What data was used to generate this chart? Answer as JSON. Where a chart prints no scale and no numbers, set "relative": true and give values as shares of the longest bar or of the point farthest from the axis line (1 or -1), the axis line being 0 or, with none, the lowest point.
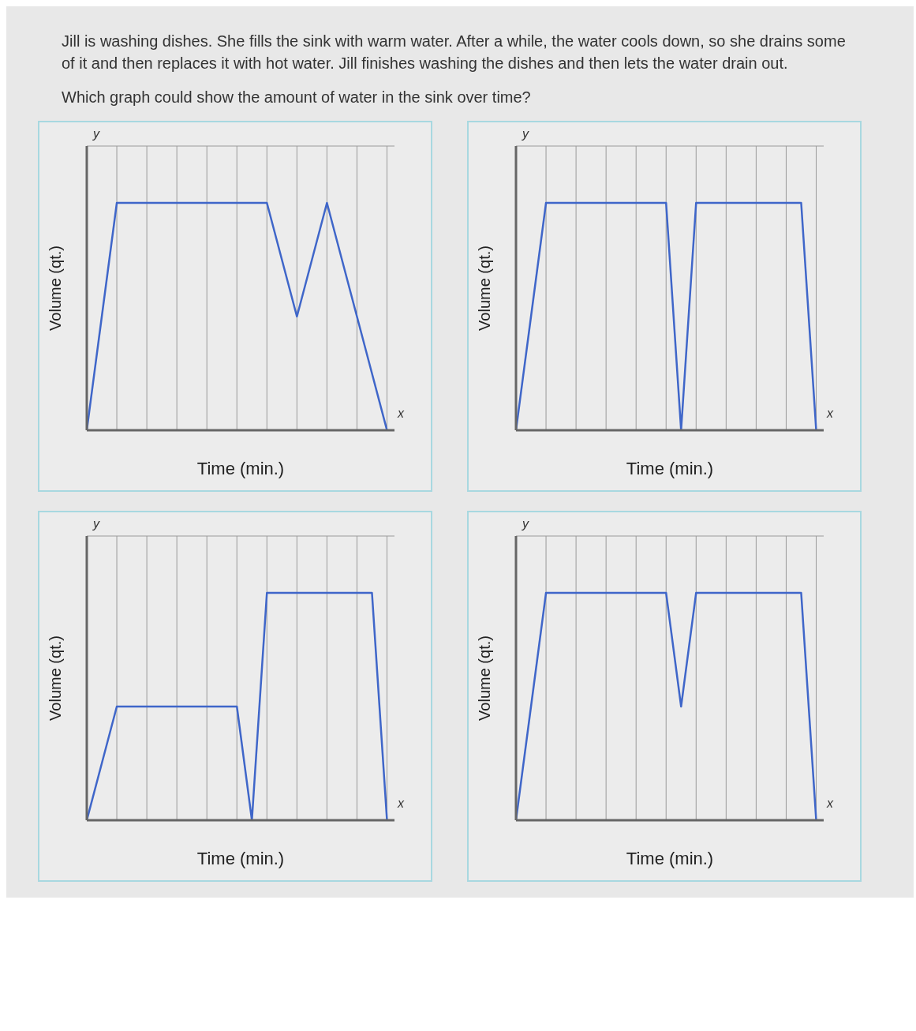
{
  "chart_data": [
    {
      "type": "line",
      "title": "Jill is washing dishes. She fills the sink with warm water. After a while, the water cools down, so she drains some of it and then replaces it with hot water. Jill finishes washing the dishes and then lets the water drain out.",
      "subtitle": "Which graph could show the amount of water in the sink over time?",
      "xlabel": "Time (min.)",
      "ylabel": "Volume (qt.)",
      "relative": true,
      "grid": true,
      "color": "#3f66c9",
      "categories": [
        null,
        null,
        null,
        null,
        null,
        null,
        null,
        null,
        null,
        null,
        null,
        null,
        null,
        null,
        null,
        null,
        null,
        null,
        null,
        null,
        null
      ],
      "values": [
        0,
        0.5,
        1,
        1,
        1,
        1,
        1,
        1,
        1,
        1,
        1,
        1,
        1,
        0.75,
        0.5,
        0.75,
        1,
        0.75,
        0.5,
        0.25,
        0
      ],
      "annotations": [
        "y",
        "x"
      ]
    },
    {
      "type": "line",
      "xlabel": "Time (min.)",
      "ylabel": "Volume (qt.)",
      "relative": true,
      "grid": true,
      "color": "#3f66c9",
      "categories": [
        null,
        null,
        null,
        null,
        null,
        null,
        null,
        null,
        null,
        null,
        null,
        null,
        null,
        null,
        null,
        null,
        null,
        null,
        null,
        null,
        null
      ],
      "values": [
        0,
        0.5,
        1,
        1,
        1,
        1,
        1,
        1,
        1,
        1,
        1,
        0,
        1,
        1,
        1,
        1,
        1,
        1,
        1,
        1,
        0
      ],
      "annotations": [
        "y",
        "x"
      ]
    },
    {
      "type": "line",
      "xlabel": "Time (min.)",
      "ylabel": "Volume (qt.)",
      "relative": true,
      "grid": true,
      "color": "#3f66c9",
      "categories": [
        null,
        null,
        null,
        null,
        null,
        null,
        null,
        null,
        null,
        null,
        null,
        null,
        null,
        null,
        null,
        null,
        null,
        null,
        null,
        null,
        null
      ],
      "values": [
        0,
        0.25,
        0.5,
        0.5,
        0.5,
        0.5,
        0.5,
        0.5,
        0.5,
        0.5,
        0.5,
        0,
        1,
        1,
        1,
        1,
        1,
        1,
        1,
        1,
        0
      ],
      "annotations": [
        "y",
        "x"
      ]
    },
    {
      "type": "line",
      "xlabel": "Time (min.)",
      "ylabel": "Volume (qt.)",
      "relative": true,
      "grid": true,
      "color": "#3f66c9",
      "categories": [
        null,
        null,
        null,
        null,
        null,
        null,
        null,
        null,
        null,
        null,
        null,
        null,
        null,
        null,
        null,
        null,
        null,
        null,
        null,
        null,
        null
      ],
      "values": [
        0,
        0.5,
        1,
        1,
        1,
        1,
        1,
        1,
        1,
        1,
        1,
        0.5,
        1,
        1,
        1,
        1,
        1,
        1,
        1,
        1,
        0
      ],
      "annotations": [
        "y",
        "x"
      ]
    }
  ]
}
